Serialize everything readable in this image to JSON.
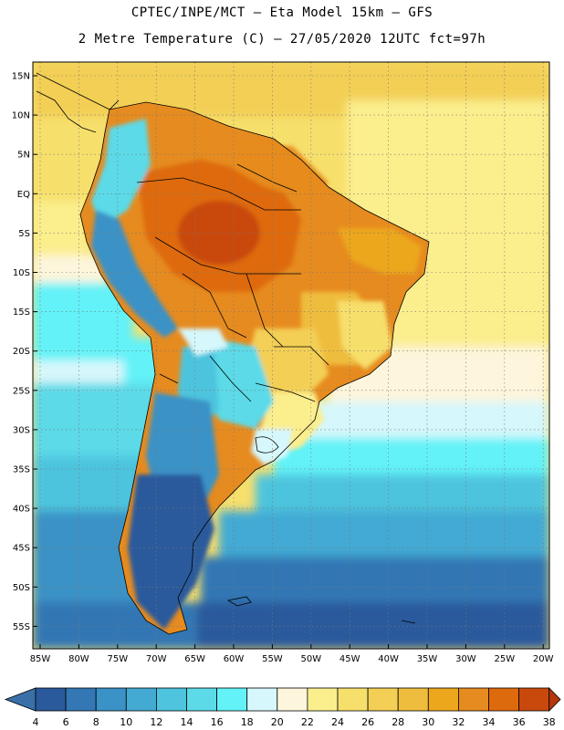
{
  "header": {
    "title_line1": "CPTEC/INPE/MCT –  Eta Model 15km – GFS",
    "title_line2": "2 Metre Temperature (C) – 27/05/2020 12UTC fct=97h"
  },
  "map": {
    "lat_labels": [
      "15N",
      "10N",
      "5N",
      "EQ",
      "5S",
      "10S",
      "15S",
      "20S",
      "25S",
      "30S",
      "35S",
      "40S",
      "45S",
      "50S",
      "55S"
    ],
    "lon_labels": [
      "85W",
      "80W",
      "75W",
      "70W",
      "65W",
      "60W",
      "55W",
      "50W",
      "45W",
      "40W",
      "35W",
      "30W",
      "25W",
      "20W"
    ]
  },
  "colorbar": {
    "labels": [
      "4",
      "6",
      "8",
      "10",
      "12",
      "14",
      "16",
      "18",
      "20",
      "22",
      "24",
      "26",
      "28",
      "30",
      "32",
      "34",
      "36",
      "38"
    ],
    "colors": [
      "#2a5a9c",
      "#3377b4",
      "#3a92c6",
      "#43aad4",
      "#4ec4de",
      "#5cdae8",
      "#62f2f8",
      "#d6f7fb",
      "#fdf5dc",
      "#fbee8d",
      "#f7df6c",
      "#f3cf55",
      "#efbd3e",
      "#eca71d",
      "#e68b1f",
      "#de6a0e",
      "#c9490d"
    ],
    "low_color": "#3a70a8",
    "high_color": "#b4360b"
  }
}
